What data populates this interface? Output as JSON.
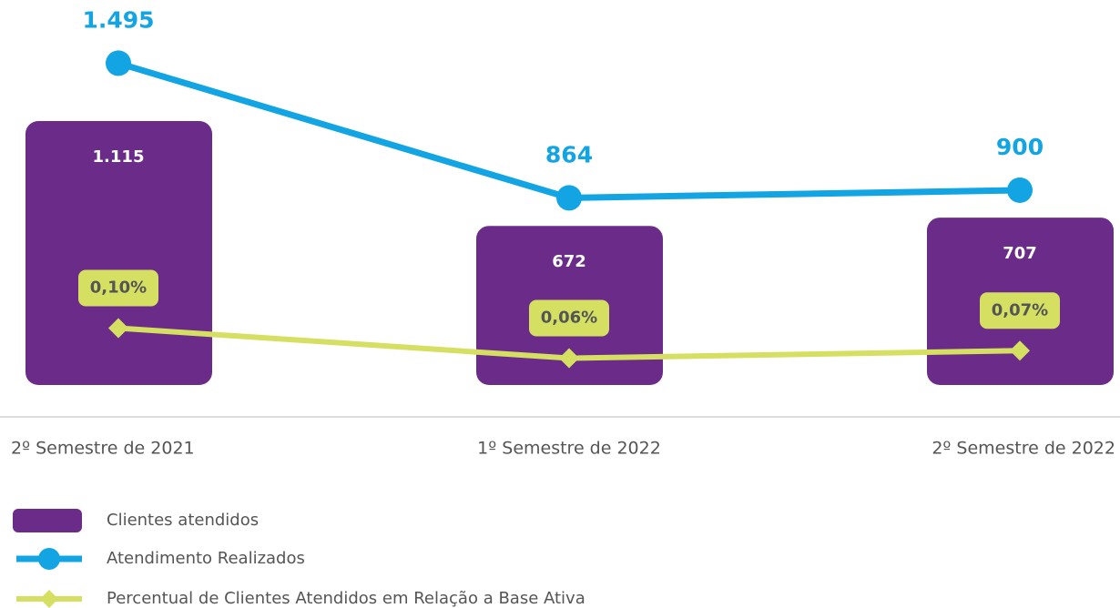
{
  "chart_data": {
    "type": "bar",
    "categories": [
      "2º Semestre de 2021",
      "1º Semestre de 2022",
      "2º Semestre de 2022"
    ],
    "series": [
      {
        "name": "Clientes atendidos",
        "type": "bar",
        "color": "#6b2c89",
        "values": [
          1115,
          672,
          707
        ],
        "value_labels": [
          "1.115",
          "672",
          "707"
        ]
      },
      {
        "name": "Atendimento Realizados",
        "type": "line",
        "color": "#13a4e3",
        "values": [
          1495,
          864,
          900
        ],
        "value_labels": [
          "1.495",
          "864",
          "900"
        ]
      },
      {
        "name": "Percentual de Clientes Atendidos em Relação a Base Ativa",
        "type": "line",
        "color": "#d5df62",
        "values": [
          0.1,
          0.06,
          0.07
        ],
        "value_labels": [
          "0,10%",
          "0,06%",
          "0,07%"
        ]
      }
    ]
  }
}
